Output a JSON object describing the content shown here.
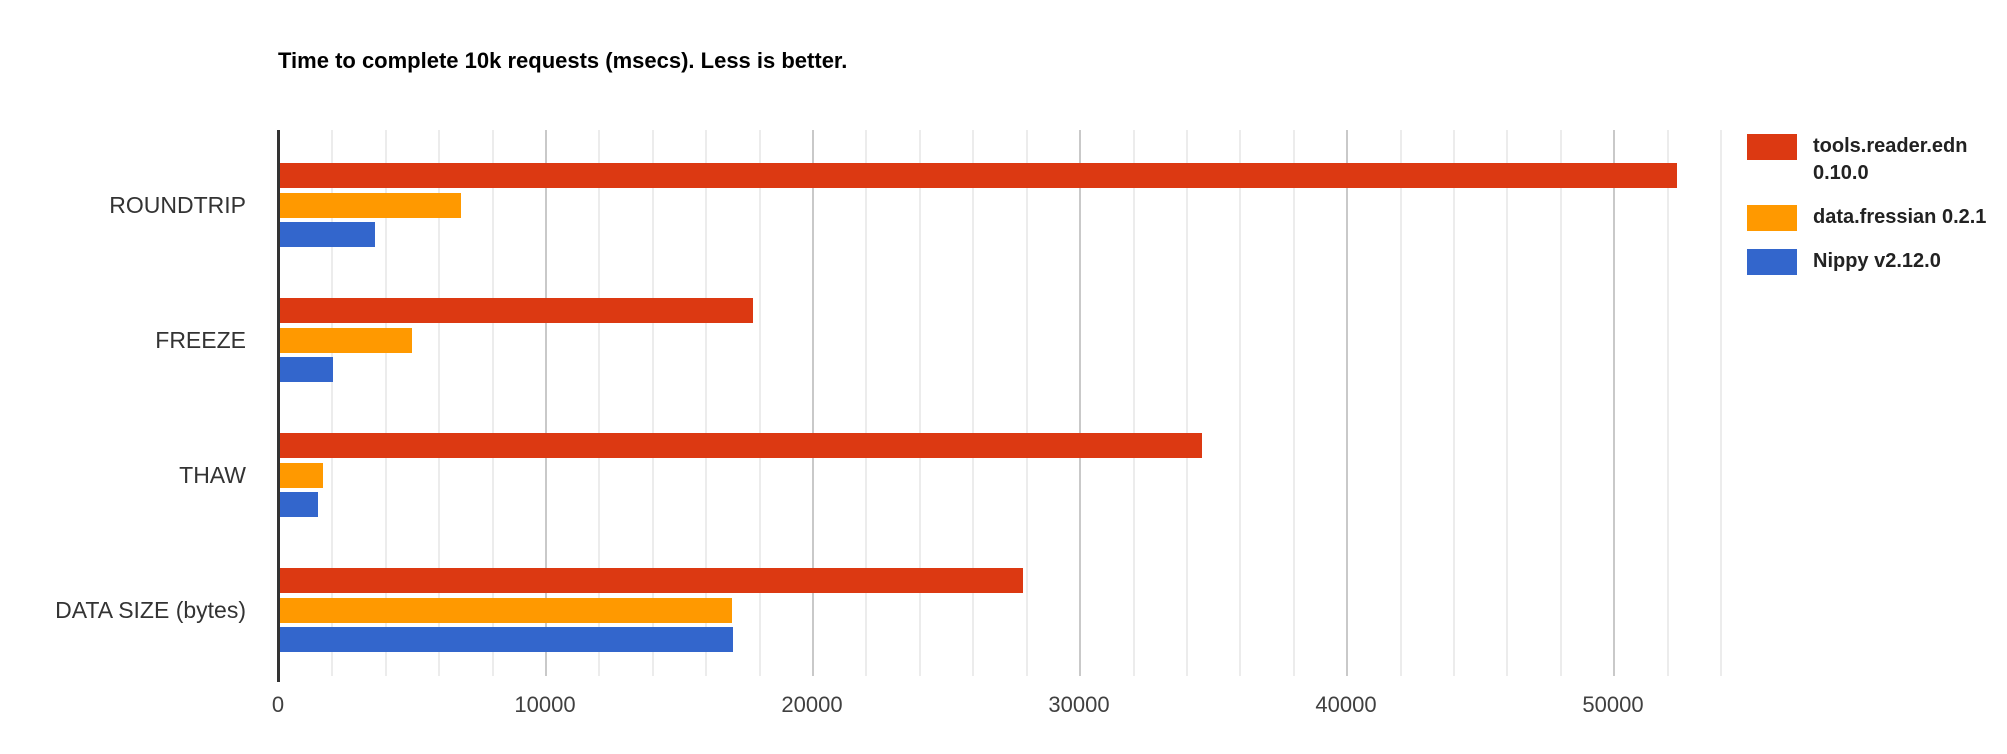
{
  "chart_data": {
    "type": "bar",
    "orientation": "horizontal",
    "title": "Time to complete 10k requests (msecs). Less is better.",
    "categories": [
      "ROUNDTRIP",
      "FREEZE",
      "THAW",
      "DATA SIZE (bytes)"
    ],
    "series": [
      {
        "name": "tools.reader.edn 0.10.0",
        "color": "#dc3912",
        "values": [
          52400,
          17800,
          34600,
          27900
        ]
      },
      {
        "name": "data.fressian 0.2.1",
        "color": "#ff9900",
        "values": [
          6850,
          5000,
          1700,
          17000
        ]
      },
      {
        "name": "Nippy v2.12.0",
        "color": "#3366cc",
        "values": [
          3650,
          2050,
          1500,
          17050
        ]
      }
    ],
    "x_axis": {
      "min": 0,
      "max_visible": 54000,
      "ticks": [
        0,
        10000,
        20000,
        30000,
        40000,
        50000
      ],
      "tick_step": 10000,
      "minor_gridline_step": 2000
    },
    "y_axis_label": "",
    "x_axis_label": "",
    "legend_position": "right",
    "grid": true
  }
}
